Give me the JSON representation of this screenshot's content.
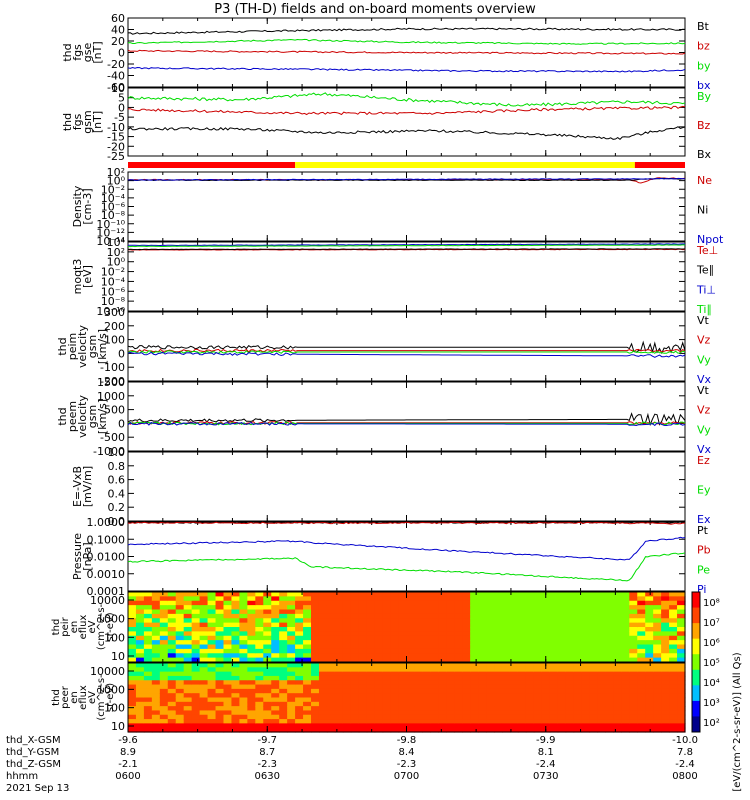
{
  "title": "P3 (TH-D) fields and on-board moments overview",
  "colors": {
    "black": "#000000",
    "red": "#cc0000",
    "green": "#00dd00",
    "blue": "#0000cc",
    "yellow": "#ffff00",
    "brightred": "#ff0000"
  },
  "chart_data": {
    "type": "line",
    "x": {
      "times": [
        "0600",
        "0630",
        "0700",
        "0730",
        "0800"
      ],
      "ticks": [
        {
          "lx": "-9.6",
          "ly": "8.9",
          "lz": "-2.1",
          "hhmm": "0600"
        },
        {
          "lx": "-9.7",
          "ly": "8.7",
          "lz": "-2.3",
          "hhmm": "0630"
        },
        {
          "lx": "-9.8",
          "ly": "8.4",
          "lz": "-2.3",
          "hhmm": "0700"
        },
        {
          "lx": "-9.9",
          "ly": "8.1",
          "lz": "-2.4",
          "hhmm": "0730"
        },
        {
          "lx": "-10.0",
          "ly": "7.8",
          "lz": "-2.4",
          "hhmm": "0800"
        }
      ],
      "rowlabels": [
        "thd_X-GSM",
        "thd_Y-GSM",
        "thd_Z-GSM",
        "hhmm"
      ],
      "date": "2021 Sep 13"
    },
    "panels": [
      {
        "id": "fgs_gse",
        "ylabel": [
          "thd",
          "fgs",
          "gse",
          "[nT]"
        ],
        "ylim": [
          -60,
          60
        ],
        "log": false,
        "ticks": [
          "60",
          "40",
          "20",
          "0",
          "-20",
          "-40",
          "-60"
        ],
        "series": [
          {
            "name": "Bt",
            "color": "#000000",
            "knots": [
              [
                0,
                33
              ],
              [
                0.3,
                38
              ],
              [
                0.5,
                41
              ],
              [
                0.7,
                41
              ],
              [
                0.92,
                40
              ],
              [
                1,
                40
              ]
            ]
          },
          {
            "name": "bz",
            "color": "#cc0000",
            "knots": [
              [
                0,
                3
              ],
              [
                0.5,
                0
              ],
              [
                1,
                -2
              ]
            ]
          },
          {
            "name": "by",
            "color": "#00dd00",
            "knots": [
              [
                0,
                16
              ],
              [
                0.3,
                22
              ],
              [
                0.5,
                18
              ],
              [
                0.8,
                15
              ],
              [
                1,
                16
              ]
            ]
          },
          {
            "name": "bx",
            "color": "#0000cc",
            "knots": [
              [
                0,
                -27
              ],
              [
                0.3,
                -29
              ],
              [
                0.6,
                -32
              ],
              [
                0.9,
                -33
              ],
              [
                1,
                -30
              ]
            ]
          }
        ]
      },
      {
        "id": "fgs_gsm",
        "ylabel": [
          "thd",
          "fgs",
          "gsm",
          "[nT]"
        ],
        "ylim": [
          -25,
          10
        ],
        "log": false,
        "ticks": [
          "10",
          "5",
          "0",
          "-5",
          "-10",
          "-15",
          "-20",
          "-25"
        ],
        "series": [
          {
            "name": "By",
            "color": "#00dd00",
            "knots": [
              [
                0,
                5
              ],
              [
                0.2,
                4
              ],
              [
                0.35,
                7
              ],
              [
                0.5,
                4
              ],
              [
                0.7,
                1
              ],
              [
                0.9,
                3
              ],
              [
                1,
                2
              ]
            ]
          },
          {
            "name": "Bz",
            "color": "#cc0000",
            "knots": [
              [
                0,
                -1
              ],
              [
                0.3,
                -3
              ],
              [
                0.55,
                -3
              ],
              [
                0.75,
                -1
              ],
              [
                1,
                0
              ]
            ]
          },
          {
            "name": "Bx",
            "color": "#000000",
            "knots": [
              [
                0,
                -11
              ],
              [
                0.2,
                -11
              ],
              [
                0.35,
                -13
              ],
              [
                0.55,
                -12
              ],
              [
                0.75,
                -14
              ],
              [
                0.88,
                -16
              ],
              [
                0.95,
                -12
              ],
              [
                1,
                -10
              ]
            ]
          }
        ]
      },
      {
        "id": "density",
        "ylabel": [
          "Density",
          "[cm-3]"
        ],
        "ylim": [
          -14,
          2
        ],
        "log": true,
        "ticks": [
          "10²",
          "10⁰",
          "10⁻²",
          "10⁻⁴",
          "10⁻⁶",
          "10⁻⁸",
          "10⁻¹⁰",
          "10⁻¹²",
          "10⁻¹⁴"
        ],
        "series": [
          {
            "name": "Ne",
            "color": "#cc0000",
            "knots": [
              [
                0,
                0.2
              ],
              [
                0.9,
                0.2
              ],
              [
                0.92,
                -0.5
              ],
              [
                0.95,
                0.6
              ],
              [
                1,
                0.5
              ]
            ]
          },
          {
            "name": "Ni",
            "color": "#000000",
            "knots": [
              [
                0,
                0.1
              ],
              [
                0.9,
                0.1
              ],
              [
                0.95,
                0.5
              ],
              [
                1,
                0.4
              ]
            ]
          },
          {
            "name": "Npot",
            "color": "#0000cc",
            "knots": [
              [
                0,
                0.15
              ],
              [
                1,
                0.45
              ]
            ]
          }
        ]
      },
      {
        "id": "temp",
        "ylabel": [
          "moqt3",
          "[eV]"
        ],
        "ylim": [
          -10,
          4
        ],
        "log": true,
        "ticks": [
          "10⁴",
          "10²",
          "10⁰",
          "10⁻²",
          "10⁻⁴",
          "10⁻⁶",
          "10⁻⁸",
          "10⁻¹⁰"
        ],
        "series": [
          {
            "name": "Te⊥",
            "color": "#cc0000",
            "knots": [
              [
                0,
                2.4
              ],
              [
                1,
                2.5
              ]
            ]
          },
          {
            "name": "Te∥",
            "color": "#000000",
            "knots": [
              [
                0,
                2.5
              ],
              [
                1,
                2.6
              ]
            ]
          },
          {
            "name": "Ti⊥",
            "color": "#0000cc",
            "knots": [
              [
                0,
                3.3
              ],
              [
                1,
                3.6
              ]
            ]
          },
          {
            "name": "Ti∥",
            "color": "#00dd00",
            "knots": [
              [
                0,
                3.1
              ],
              [
                1,
                3.4
              ]
            ]
          }
        ]
      },
      {
        "id": "peim_velocity",
        "ylabel": [
          "thd",
          "peim",
          "velocity",
          "gsm",
          "[km/s]"
        ],
        "ylim": [
          -200,
          300
        ],
        "log": false,
        "ticks": [
          "300",
          "200",
          "100",
          "0",
          "-100",
          "-200"
        ],
        "series": [
          {
            "name": "Vt",
            "color": "#000000",
            "knots": [
              [
                0,
                45
              ],
              [
                1,
                45
              ]
            ]
          },
          {
            "name": "Vz",
            "color": "#cc0000",
            "knots": [
              [
                0,
                20
              ],
              [
                1,
                20
              ]
            ]
          },
          {
            "name": "Vy",
            "color": "#00dd00",
            "knots": [
              [
                0,
                10
              ],
              [
                1,
                10
              ]
            ]
          },
          {
            "name": "Vx",
            "color": "#0000cc",
            "knots": [
              [
                0,
                0
              ],
              [
                1,
                -20
              ]
            ]
          }
        ]
      },
      {
        "id": "peem_velocity",
        "ylabel": [
          "thd",
          "peem",
          "velocity",
          "gsm",
          "[km/s]"
        ],
        "ylim": [
          -1000,
          1500
        ],
        "log": false,
        "ticks": [
          "1500",
          "1000",
          "500",
          "0",
          "-500",
          "-1000"
        ],
        "series": [
          {
            "name": "Vt",
            "color": "#000000",
            "knots": [
              [
                0,
                100
              ],
              [
                1,
                150
              ]
            ]
          },
          {
            "name": "Vz",
            "color": "#cc0000",
            "knots": [
              [
                0,
                20
              ],
              [
                1,
                20
              ]
            ]
          },
          {
            "name": "Vy",
            "color": "#00dd00",
            "knots": [
              [
                0,
                0
              ],
              [
                1,
                0
              ]
            ]
          },
          {
            "name": "Vx",
            "color": "#0000cc",
            "knots": [
              [
                0,
                -10
              ],
              [
                1,
                -30
              ]
            ]
          }
        ]
      },
      {
        "id": "efield",
        "ylabel": [
          "E=-VxB",
          "[mV/m]"
        ],
        "ylim": [
          0,
          1
        ],
        "log": false,
        "ticks": [
          "1.0",
          "0.8",
          "0.6",
          "0.4",
          "0.2",
          "0.0"
        ],
        "series": [
          {
            "name": "Ez",
            "color": "#cc0000",
            "knots": []
          },
          {
            "name": "Ey",
            "color": "#00dd00",
            "knots": []
          },
          {
            "name": "Ex",
            "color": "#0000cc",
            "knots": []
          }
        ]
      },
      {
        "id": "pressure",
        "ylabel": [
          "Pressure",
          "[nPa]"
        ],
        "ylim": [
          -4,
          0
        ],
        "log": true,
        "ticks": [
          "1.0000",
          "0.1000",
          "0.0100",
          "0.0010",
          "0.0001"
        ],
        "series": [
          {
            "name": "Pt",
            "color": "#000000",
            "knots": [
              [
                0,
                -0.02
              ],
              [
                1,
                -0.02
              ]
            ]
          },
          {
            "name": "Pb",
            "color": "#cc0000",
            "knots": [
              [
                0,
                -0.05
              ],
              [
                0.9,
                -0.06
              ],
              [
                1,
                -0.1
              ]
            ]
          },
          {
            "name": "Pe",
            "color": "#00dd00",
            "knots": [
              [
                0,
                -2.3
              ],
              [
                0.3,
                -2.1
              ],
              [
                0.33,
                -2.6
              ],
              [
                0.6,
                -2.9
              ],
              [
                0.9,
                -3.4
              ],
              [
                0.93,
                -2.0
              ],
              [
                1,
                -1.8
              ]
            ]
          },
          {
            "name": "Pi",
            "color": "#0000cc",
            "knots": [
              [
                0,
                -1.3
              ],
              [
                0.3,
                -1.1
              ],
              [
                0.33,
                -1.2
              ],
              [
                0.6,
                -1.7
              ],
              [
                0.9,
                -2.2
              ],
              [
                0.93,
                -1.1
              ],
              [
                1,
                -0.9
              ]
            ]
          }
        ]
      }
    ],
    "spectrograms": [
      {
        "id": "peir",
        "ylabel": [
          "thd",
          "peir",
          "en",
          "eflux",
          "eV",
          "(cm^2-s-",
          "sr-eV)"
        ],
        "ticks": [
          "10000",
          "1000",
          "100",
          "10"
        ]
      },
      {
        "id": "peer",
        "ylabel": [
          "thd",
          "peer",
          "en",
          "eflux",
          "eV",
          "(cm^2-s-",
          "sr-eV)"
        ],
        "ticks": [
          "10000",
          "1000",
          "100",
          "10"
        ]
      }
    ],
    "colorbar": {
      "ticks": [
        "10⁸",
        "10⁷",
        "10⁶",
        "10⁵",
        "10⁴",
        "10³",
        "10²"
      ],
      "label": "[eV/(cm^2-s-sr-eV)] (All Qs)"
    },
    "flag_bar": [
      {
        "from": 0,
        "to": 0.3,
        "color": "#ff0000"
      },
      {
        "from": 0.3,
        "to": 0.91,
        "color": "#ffff00"
      },
      {
        "from": 0.91,
        "to": 1,
        "color": "#ff0000"
      }
    ]
  }
}
